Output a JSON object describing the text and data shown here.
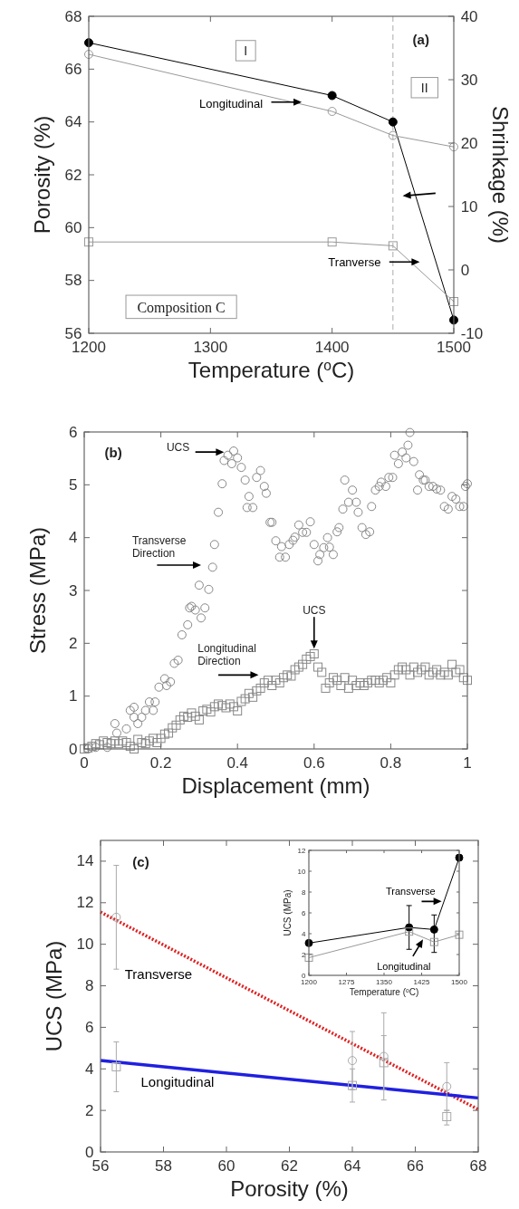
{
  "chart_data": [
    {
      "type": "line",
      "xlabel": "Temperature ($^{o}$C)",
      "ylabel": "Porosity (%)",
      "y2label": "Shrinkage (%)",
      "x": [
        1200,
        1400,
        1450,
        1500
      ],
      "xlim": [
        1200,
        1500
      ],
      "xticks": [
        1200,
        1300,
        1400,
        1500
      ],
      "ylim": [
        56,
        68
      ],
      "yticks": [
        56,
        58,
        60,
        62,
        64,
        66,
        68
      ],
      "y2lim": [
        -10,
        40
      ],
      "y2ticks": [
        -10,
        0,
        10,
        20,
        30,
        40
      ],
      "series": [
        {
          "color": "#000000",
          "marker": "circle",
          "values": [
            67,
            65,
            64,
            56.5
          ]
        },
        {
          "name": "Longitudinal",
          "color": "#999999",
          "marker": "circle",
          "axis": "y2",
          "values": [
            34,
            25,
            21.2,
            19.4
          ]
        },
        {
          "name": "Tranverse",
          "color": "#999999",
          "marker": "square",
          "axis": "y2",
          "values": [
            4.4,
            4.4,
            3.8,
            -5
          ]
        }
      ],
      "ref_lines": [
        {
          "axis": "x",
          "value": 1450,
          "color": "#aaaaaa",
          "line_style": "dashed"
        }
      ],
      "annotations": [
        "(a)",
        "I",
        "II",
        "Composition C"
      ]
    },
    {
      "type": "scatter",
      "xlabel": "Displacement (mm)",
      "ylabel": "Stress (MPa)",
      "xlim": [
        0,
        1
      ],
      "xticks": [
        0,
        0.2,
        0.4,
        0.6,
        0.8,
        1
      ],
      "ylim": [
        0,
        6
      ],
      "yticks": [
        0,
        1,
        2,
        3,
        4,
        5,
        6
      ],
      "series": [
        {
          "color": "#888888",
          "marker": "circle",
          "x": [
            0.01,
            0.03,
            0.06,
            0.08,
            0.085,
            0.11,
            0.12,
            0.13,
            0.13,
            0.14,
            0.15,
            0.16,
            0.17,
            0.18,
            0.185,
            0.195,
            0.21,
            0.215,
            0.225,
            0.235,
            0.245,
            0.255,
            0.27,
            0.275,
            0.28,
            0.29,
            0.3,
            0.305,
            0.315,
            0.325,
            0.335,
            0.34,
            0.35,
            0.36,
            0.365,
            0.375,
            0.385,
            0.39,
            0.4,
            0.41,
            0.42,
            0.425,
            0.43,
            0.44,
            0.45,
            0.46,
            0.47,
            0.475,
            0.485,
            0.49,
            0.5,
            0.51,
            0.515,
            0.525,
            0.535,
            0.545,
            0.55,
            0.56,
            0.57,
            0.58,
            0.59,
            0.6,
            0.61,
            0.615,
            0.625,
            0.635,
            0.64,
            0.65,
            0.66,
            0.665,
            0.675,
            0.68,
            0.69,
            0.7,
            0.71,
            0.715,
            0.725,
            0.735,
            0.745,
            0.75,
            0.76,
            0.77,
            0.775,
            0.787,
            0.795,
            0.805,
            0.81,
            0.82,
            0.83,
            0.84,
            0.845,
            0.85,
            0.86,
            0.87,
            0.875,
            0.885,
            0.89,
            0.9,
            0.91,
            0.92,
            0.93,
            0.94,
            0.95,
            0.96,
            0.97,
            0.98,
            0.99,
            0.995,
            1.0
          ],
          "values": [
            0,
            0.03,
            0.03,
            0.48,
            0.3,
            0.38,
            0.73,
            0.79,
            0.6,
            0.48,
            0.6,
            0.73,
            0.89,
            0.73,
            0.89,
            1.17,
            1.33,
            1.2,
            1.27,
            1.62,
            1.68,
            2.16,
            2.35,
            2.67,
            2.7,
            2.63,
            3.1,
            2.48,
            2.67,
            3.02,
            3.44,
            3.87,
            4.48,
            5.02,
            5.46,
            5.56,
            5.4,
            5.64,
            5.51,
            5.33,
            5.09,
            4.57,
            4.78,
            4.57,
            5.14,
            5.27,
            4.97,
            4.84,
            4.29,
            4.29,
            3.94,
            3.63,
            3.83,
            3.63,
            3.87,
            3.95,
            4.01,
            4.24,
            4.1,
            4.1,
            4.3,
            3.87,
            3.56,
            3.68,
            3.81,
            4.0,
            3.82,
            3.68,
            4.11,
            4.19,
            4.54,
            5.09,
            4.67,
            4.9,
            4.67,
            4.48,
            4.19,
            4.06,
            4.11,
            4.59,
            4.9,
            4.97,
            5.05,
            4.97,
            5.14,
            5.14,
            5.56,
            5.4,
            5.62,
            5.51,
            5.75,
            5.99,
            5.44,
            4.9,
            5.19,
            5.09,
            5.09,
            4.97,
            4.97,
            4.92,
            4.9,
            4.59,
            4.54,
            4.78,
            4.73,
            4.59,
            4.59,
            4.97,
            5.02
          ]
        },
        {
          "color": "#888888",
          "marker": "square",
          "x": [
            0,
            0.01,
            0.02,
            0.03,
            0.04,
            0.05,
            0.06,
            0.07,
            0.08,
            0.09,
            0.1,
            0.11,
            0.12,
            0.13,
            0.14,
            0.15,
            0.16,
            0.17,
            0.18,
            0.19,
            0.2,
            0.21,
            0.22,
            0.23,
            0.24,
            0.25,
            0.26,
            0.27,
            0.28,
            0.29,
            0.3,
            0.31,
            0.32,
            0.33,
            0.34,
            0.35,
            0.36,
            0.37,
            0.38,
            0.39,
            0.4,
            0.41,
            0.42,
            0.43,
            0.44,
            0.45,
            0.46,
            0.47,
            0.48,
            0.49,
            0.5,
            0.51,
            0.52,
            0.53,
            0.54,
            0.55,
            0.56,
            0.57,
            0.58,
            0.59,
            0.6,
            0.61,
            0.62,
            0.63,
            0.64,
            0.65,
            0.66,
            0.67,
            0.68,
            0.69,
            0.7,
            0.71,
            0.72,
            0.73,
            0.74,
            0.75,
            0.76,
            0.77,
            0.78,
            0.79,
            0.8,
            0.81,
            0.82,
            0.83,
            0.84,
            0.85,
            0.86,
            0.87,
            0.88,
            0.89,
            0.9,
            0.91,
            0.92,
            0.93,
            0.94,
            0.95,
            0.96,
            0.97,
            0.98,
            0.99,
            1.0
          ],
          "values": [
            0,
            0.02,
            0.05,
            0.1,
            0.08,
            0.15,
            0.12,
            0.1,
            0.15,
            0.1,
            0.15,
            0.12,
            0.05,
            0,
            0.18,
            0.12,
            0.1,
            0.15,
            0.2,
            0.12,
            0.2,
            0.28,
            0.3,
            0.4,
            0.45,
            0.55,
            0.62,
            0.6,
            0.68,
            0.62,
            0.55,
            0.72,
            0.75,
            0.7,
            0.8,
            0.85,
            0.82,
            0.78,
            0.85,
            0.8,
            0.72,
            0.9,
            0.95,
            1.05,
            0.98,
            1.1,
            1.15,
            1.25,
            1.3,
            1.2,
            1.3,
            1.25,
            1.35,
            1.4,
            1.38,
            1.5,
            1.55,
            1.6,
            1.7,
            1.75,
            1.8,
            1.55,
            1.45,
            1.15,
            1.25,
            1.35,
            1.3,
            1.2,
            1.35,
            1.15,
            1.3,
            1.2,
            1.25,
            1.2,
            1.25,
            1.3,
            1.3,
            1.25,
            1.3,
            1.35,
            1.25,
            1.4,
            1.5,
            1.55,
            1.5,
            1.4,
            1.55,
            1.45,
            1.5,
            1.55,
            1.4,
            1.45,
            1.5,
            1.4,
            1.45,
            1.4,
            1.6,
            1.45,
            1.5,
            1.35,
            1.3
          ]
        }
      ],
      "annotations": [
        "(b)",
        "UCS",
        "Transverse\nDirection",
        "UCS",
        "Longitudinal\nDirection"
      ]
    },
    {
      "type": "line",
      "xlabel": "Porosity (%)",
      "ylabel": "UCS (MPa)",
      "xlim": [
        56,
        68
      ],
      "xticks": [
        56,
        58,
        60,
        62,
        64,
        66,
        68
      ],
      "ylim": [
        0,
        15
      ],
      "yticks": [
        0,
        2,
        4,
        6,
        8,
        10,
        12,
        14
      ],
      "series": [
        {
          "name": "Transverse",
          "color": "#e02020",
          "line_style": "dotted",
          "marker": "none",
          "x": [
            56,
            68
          ],
          "values": [
            11.55,
            2.05
          ]
        },
        {
          "name": "Longitudinal",
          "color": "#2020e0",
          "marker": "none",
          "x": [
            56,
            68
          ],
          "values": [
            4.4,
            2.6
          ]
        },
        {
          "type": "scatter",
          "color": "#aaaaaa",
          "marker": "circle",
          "x": [
            56.5,
            64,
            65,
            67
          ],
          "values": [
            11.3,
            4.4,
            4.6,
            3.15
          ],
          "errors": [
            [
              8.8,
              13.8
            ],
            [
              3.0,
              5.8
            ],
            [
              2.5,
              6.7
            ],
            [
              2.0,
              4.3
            ]
          ]
        },
        {
          "type": "scatter",
          "color": "#aaaaaa",
          "marker": "square",
          "x": [
            56.5,
            64,
            65,
            67
          ],
          "values": [
            4.1,
            3.2,
            4.3,
            1.7
          ],
          "errors": [
            [
              2.9,
              5.3
            ],
            [
              2.4,
              4.0
            ],
            [
              3.0,
              5.6
            ],
            [
              1.3,
              2.0
            ]
          ]
        }
      ],
      "annotations": [
        "(c)"
      ]
    },
    {
      "type": "line",
      "xlabel": "Temperature ($^{o}$C)",
      "ylabel": "UCS (MPa)",
      "x": [
        1200,
        1400,
        1450,
        1500
      ],
      "xlim": [
        1200,
        1500
      ],
      "xticks": [
        1200,
        1275,
        1350,
        1425,
        1500
      ],
      "ylim": [
        0,
        12
      ],
      "yticks": [
        0,
        2,
        4,
        6,
        8,
        10,
        12
      ],
      "series": [
        {
          "name": "Transverse",
          "color": "#000000",
          "marker": "circle",
          "values": [
            3.1,
            4.6,
            4.4,
            11.3
          ],
          "errors": [
            null,
            [
              2.5,
              6.7
            ],
            [
              2.2,
              5.8
            ],
            null
          ]
        },
        {
          "name": "Longitudinal",
          "color": "#999999",
          "marker": "square",
          "values": [
            1.7,
            4.2,
            3.2,
            3.9
          ]
        }
      ]
    }
  ]
}
